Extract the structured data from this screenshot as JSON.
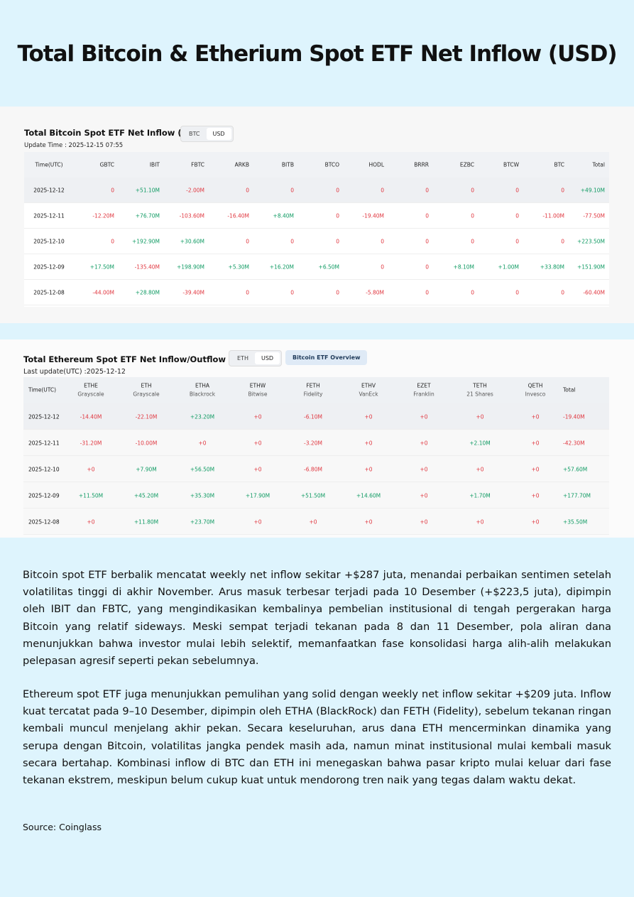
{
  "header": {
    "title": "Total Bitcoin & Etherium Spot ETF Net Inflow (USD)"
  },
  "btc": {
    "title": "Total Bitcoin Spot ETF Net Inflow (USD)",
    "tabs": [
      "BTC",
      "USD"
    ],
    "update": "Update Time : 2025-12-15 07:55",
    "headers": [
      "Time(UTC)",
      "GBTC",
      "IBIT",
      "FBTC",
      "ARKB",
      "BITB",
      "BTCO",
      "HODL",
      "BRRR",
      "EZBC",
      "BTCW",
      "BTC",
      "Total"
    ],
    "rows": [
      [
        "2025-12-12",
        "0",
        "+51.10M",
        "-2.00M",
        "0",
        "0",
        "0",
        "0",
        "0",
        "0",
        "0",
        "0",
        "+49.10M"
      ],
      [
        "2025-12-11",
        "-12.20M",
        "+76.70M",
        "-103.60M",
        "-16.40M",
        "+8.40M",
        "0",
        "-19.40M",
        "0",
        "0",
        "0",
        "-11.00M",
        "-77.50M"
      ],
      [
        "2025-12-10",
        "0",
        "+192.90M",
        "+30.60M",
        "0",
        "0",
        "0",
        "0",
        "0",
        "0",
        "0",
        "0",
        "+223.50M"
      ],
      [
        "2025-12-09",
        "+17.50M",
        "-135.40M",
        "+198.90M",
        "+5.30M",
        "+16.20M",
        "+6.50M",
        "0",
        "0",
        "+8.10M",
        "+1.00M",
        "+33.80M",
        "+151.90M"
      ],
      [
        "2025-12-08",
        "-44.00M",
        "+28.80M",
        "-39.40M",
        "0",
        "0",
        "0",
        "-5.80M",
        "0",
        "0",
        "0",
        "0",
        "-60.40M"
      ]
    ]
  },
  "eth": {
    "title": "Total Ethereum Spot ETF Net Inflow/Outflow (USD)",
    "tabs": [
      "ETH",
      "USD"
    ],
    "button": "Bitcoin ETF Overview",
    "update": "Last update(UTC) :2025-12-12",
    "time_header": "Time(UTC)",
    "columns": [
      {
        "name": "ETHE",
        "sub": "Grayscale"
      },
      {
        "name": "ETH",
        "sub": "Grayscale"
      },
      {
        "name": "ETHA",
        "sub": "Blackrock"
      },
      {
        "name": "ETHW",
        "sub": "Bitwise"
      },
      {
        "name": "FETH",
        "sub": "Fidelity"
      },
      {
        "name": "ETHV",
        "sub": "VanEck"
      },
      {
        "name": "EZET",
        "sub": "Franklin"
      },
      {
        "name": "TETH",
        "sub": "21 Shares"
      },
      {
        "name": "QETH",
        "sub": "Invesco"
      }
    ],
    "total_header": "Total",
    "rows": [
      [
        "2025-12-12",
        "-14.40M",
        "-22.10M",
        "+23.20M",
        "+0",
        "-6.10M",
        "+0",
        "+0",
        "+0",
        "+0",
        "-19.40M"
      ],
      [
        "2025-12-11",
        "-31.20M",
        "-10.00M",
        "+0",
        "+0",
        "-3.20M",
        "+0",
        "+0",
        "+2.10M",
        "+0",
        "-42.30M"
      ],
      [
        "2025-12-10",
        "+0",
        "+7.90M",
        "+56.50M",
        "+0",
        "-6.80M",
        "+0",
        "+0",
        "+0",
        "+0",
        "+57.60M"
      ],
      [
        "2025-12-09",
        "+11.50M",
        "+45.20M",
        "+35.30M",
        "+17.90M",
        "+51.50M",
        "+14.60M",
        "+0",
        "+1.70M",
        "+0",
        "+177.70M"
      ],
      [
        "2025-12-08",
        "+0",
        "+11.80M",
        "+23.70M",
        "+0",
        "+0",
        "+0",
        "+0",
        "+0",
        "+0",
        "+35.50M"
      ]
    ]
  },
  "paragraphs": [
    "Bitcoin spot ETF berbalik mencatat weekly net inflow sekitar +$287 juta, menandai perbaikan sentimen setelah volatilitas tinggi di akhir November. Arus masuk terbesar terjadi pada 10 Desember (+$223,5 juta), dipimpin oleh IBIT dan FBTC, yang mengindikasikan kembalinya pembelian institusional di tengah pergerakan harga Bitcoin yang relatif sideways. Meski sempat terjadi tekanan pada 8 dan 11 Desember, pola aliran dana menunjukkan bahwa investor mulai lebih selektif, memanfaatkan fase konsolidasi harga alih-alih melakukan pelepasan agresif seperti pekan sebelumnya.",
    "Ethereum spot ETF juga menunjukkan pemulihan yang solid dengan weekly net inflow sekitar +$209 juta. Inflow kuat tercatat pada 9–10 Desember, dipimpin oleh ETHA (BlackRock) dan FETH (Fidelity), sebelum tekanan ringan kembali muncul menjelang akhir pekan. Secara keseluruhan, arus dana ETH mencerminkan dinamika yang serupa dengan Bitcoin, volatilitas jangka pendek masih ada, namun minat institusional mulai kembali masuk secara bertahap. Kombinasi inflow di BTC dan ETH ini menegaskan bahwa pasar kripto mulai keluar dari fase tekanan ekstrem, meskipun belum cukup kuat untuk mendorong tren naik yang tegas dalam waktu dekat."
  ],
  "source": "Source: Coinglass"
}
